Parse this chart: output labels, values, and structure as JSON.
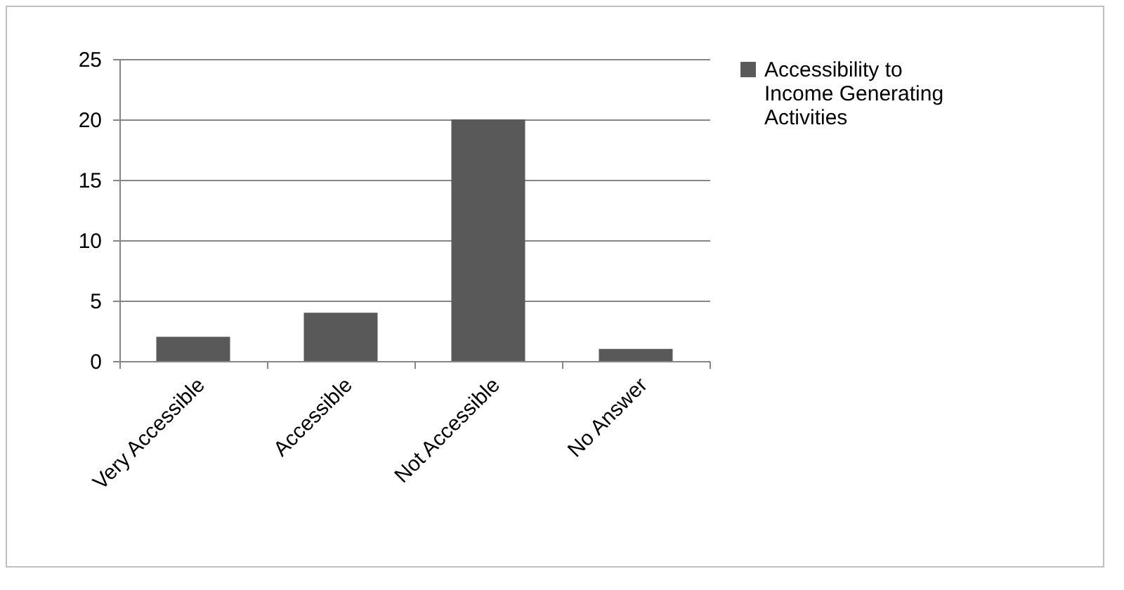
{
  "chart_data": {
    "type": "bar",
    "categories": [
      "Very Accessible",
      "Accessible",
      "Not Accessible",
      "No Answer"
    ],
    "series": [
      {
        "name": "Accessibility to Income Generating Activities",
        "color": "#595959",
        "values": [
          2,
          4,
          20,
          1
        ]
      }
    ],
    "ylim": [
      0,
      25
    ],
    "yticks": [
      0,
      5,
      10,
      15,
      20,
      25
    ],
    "grid": "y",
    "legend": "right"
  }
}
